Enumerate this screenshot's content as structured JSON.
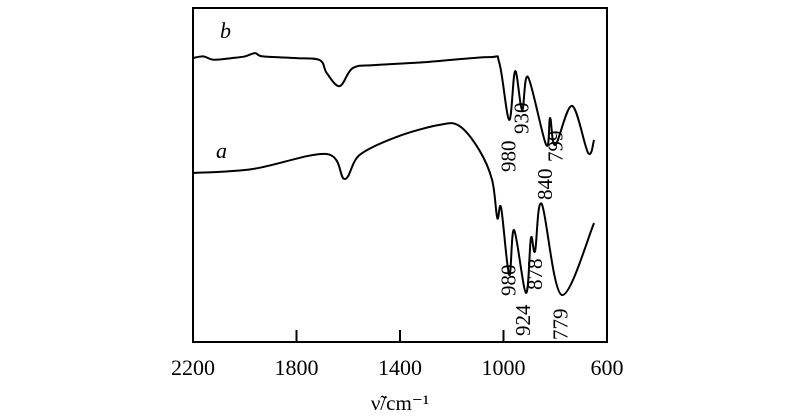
{
  "chart_data": {
    "type": "line",
    "title": "",
    "xlabel": "ν̃/cm⁻¹",
    "ylabel": "",
    "xlim": [
      2200,
      600
    ],
    "ylim": [
      0,
      100
    ],
    "xticks": [
      "2200",
      "1800",
      "1400",
      "1000",
      "600"
    ],
    "xtick_values": [
      2200,
      1800,
      1400,
      1000,
      600
    ],
    "grid": false,
    "series": [
      {
        "name": "b",
        "x": [
          2200,
          2160,
          2120,
          2050,
          2000,
          1960,
          1930,
          1800,
          1710,
          1683,
          1633,
          1583,
          1500,
          1300,
          1055,
          1016,
          978,
          955,
          928,
          905,
          835,
          820,
          800,
          735,
          673,
          650
        ],
        "y": [
          85,
          85.5,
          84.5,
          85,
          85.5,
          86.5,
          85.5,
          85,
          84.4,
          80.5,
          76.6,
          82,
          82.9,
          83.8,
          85.3,
          83.5,
          66.5,
          81.1,
          69.5,
          79.3,
          59,
          67.1,
          59,
          70.7,
          56.6,
          60.5
        ]
      },
      {
        "name": "a",
        "x": [
          2200,
          1969,
          1683,
          1614,
          1556,
          1413,
          1248,
          1171,
          1094,
          1044,
          1024,
          1009,
          978,
          959,
          913,
          894,
          878,
          852,
          775,
          650
        ],
        "y": [
          50.6,
          51.8,
          56.3,
          48.8,
          56,
          61.4,
          65,
          64.7,
          57.5,
          48.5,
          37.1,
          40.1,
          20.1,
          33.5,
          14.7,
          31.1,
          27.2,
          41.3,
          14.1,
          35.6
        ]
      }
    ],
    "annotations": [
      {
        "series": "b",
        "text": "980",
        "x": 980
      },
      {
        "series": "b",
        "text": "930",
        "x": 930
      },
      {
        "series": "b",
        "text": "840",
        "x": 840
      },
      {
        "series": "b",
        "text": "799",
        "x": 799
      },
      {
        "series": "a",
        "text": "980",
        "x": 980
      },
      {
        "series": "a",
        "text": "924",
        "x": 924
      },
      {
        "series": "a",
        "text": "878",
        "x": 878
      },
      {
        "series": "a",
        "text": "779",
        "x": 779
      }
    ]
  }
}
